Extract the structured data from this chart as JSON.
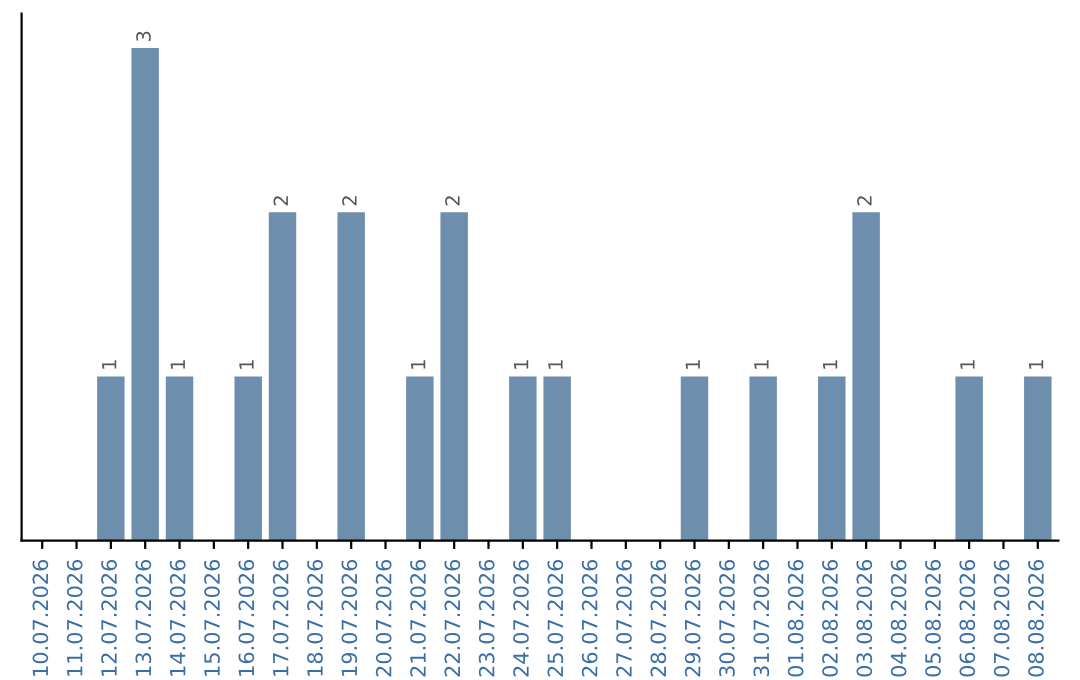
{
  "chart_data": {
    "type": "bar",
    "categories": [
      "10.07.2026",
      "11.07.2026",
      "12.07.2026",
      "13.07.2026",
      "14.07.2026",
      "15.07.2026",
      "16.07.2026",
      "17.07.2026",
      "18.07.2026",
      "19.07.2026",
      "20.07.2026",
      "21.07.2026",
      "22.07.2026",
      "23.07.2026",
      "24.07.2026",
      "25.07.2026",
      "26.07.2026",
      "27.07.2026",
      "28.07.2026",
      "29.07.2026",
      "30.07.2026",
      "31.07.2026",
      "01.08.2026",
      "02.08.2026",
      "03.08.2026",
      "04.08.2026",
      "05.08.2026",
      "06.08.2026",
      "07.08.2026",
      "08.08.2026"
    ],
    "values": [
      0,
      0,
      1,
      3,
      1,
      0,
      1,
      2,
      0,
      2,
      0,
      1,
      2,
      0,
      1,
      1,
      0,
      0,
      0,
      1,
      0,
      1,
      0,
      1,
      2,
      0,
      0,
      1,
      0,
      1
    ],
    "value_labels": [
      null,
      null,
      "1",
      "3",
      "1",
      null,
      "1",
      "2",
      null,
      "2",
      null,
      "1",
      "2",
      null,
      "1",
      "1",
      null,
      null,
      null,
      "1",
      null,
      "1",
      null,
      "1",
      "2",
      null,
      null,
      "1",
      null,
      "1"
    ],
    "color": "#6d8fad",
    "tick_labels": "x",
    "grid": false,
    "legend": false
  }
}
